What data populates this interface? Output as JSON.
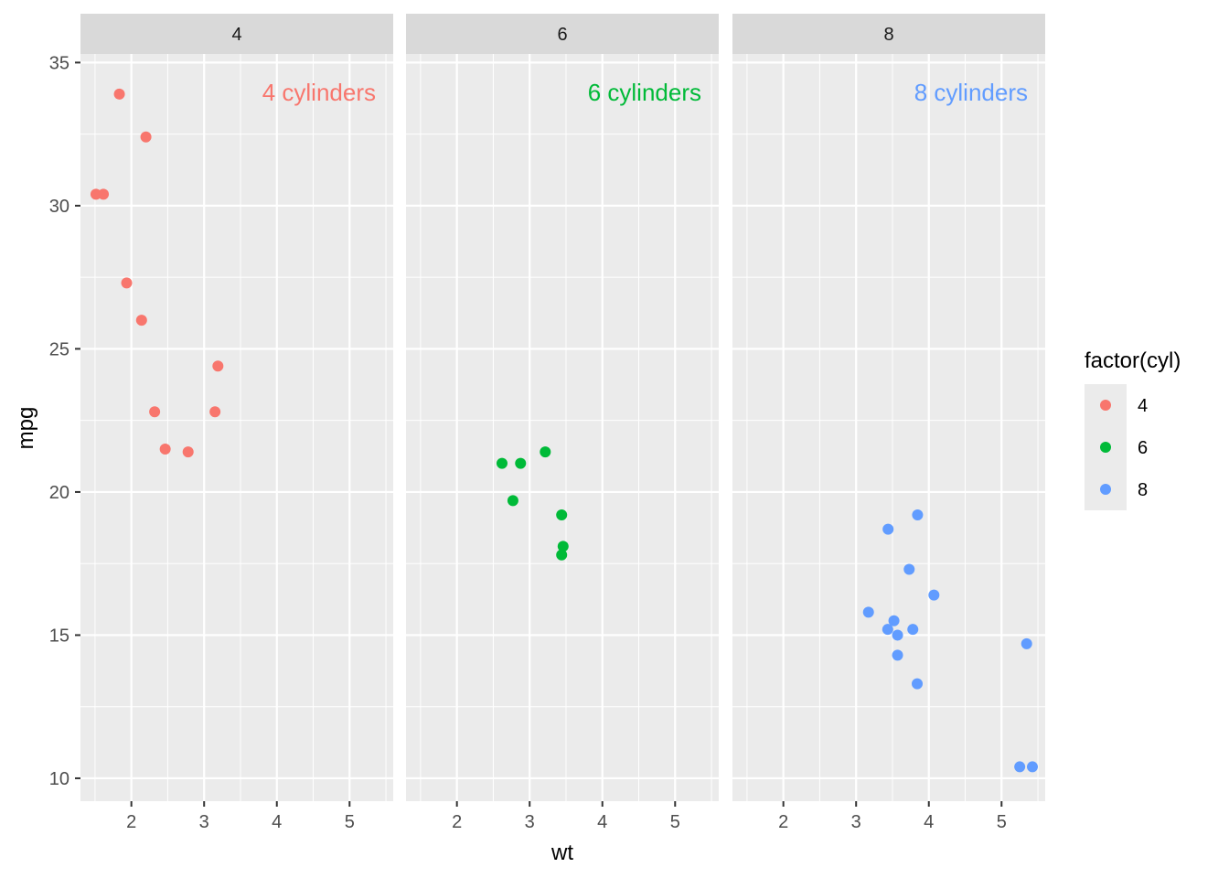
{
  "chart_data": {
    "type": "scatter",
    "facet_by": "cyl",
    "xlabel": "wt",
    "ylabel": "mpg",
    "xlim": [
      1.3,
      5.6
    ],
    "ylim": [
      9.2,
      35.3
    ],
    "x_ticks": [
      2,
      3,
      4,
      5
    ],
    "x_tick_labels": [
      "2",
      "3",
      "4",
      "5"
    ],
    "y_ticks": [
      10,
      15,
      20,
      25,
      30,
      35
    ],
    "y_tick_labels": [
      "10",
      "15",
      "20",
      "25",
      "30",
      "35"
    ],
    "grid": true,
    "legend": {
      "title": "factor(cyl)",
      "position": "right",
      "entries": [
        "4",
        "6",
        "8"
      ]
    },
    "panels": [
      {
        "strip": "4",
        "annotation": "4 cylinders",
        "color": "#F8766D",
        "points": [
          {
            "x": 1.513,
            "y": 30.4
          },
          {
            "x": 1.615,
            "y": 30.4
          },
          {
            "x": 1.835,
            "y": 33.9
          },
          {
            "x": 1.935,
            "y": 27.3
          },
          {
            "x": 2.14,
            "y": 26.0
          },
          {
            "x": 2.2,
            "y": 32.4
          },
          {
            "x": 2.32,
            "y": 22.8
          },
          {
            "x": 2.465,
            "y": 21.5
          },
          {
            "x": 2.78,
            "y": 21.4
          },
          {
            "x": 3.15,
            "y": 22.8
          },
          {
            "x": 3.19,
            "y": 24.4
          }
        ]
      },
      {
        "strip": "6",
        "annotation": "6 cylinders",
        "color": "#00BA38",
        "points": [
          {
            "x": 2.62,
            "y": 21.0
          },
          {
            "x": 2.875,
            "y": 21.0
          },
          {
            "x": 2.77,
            "y": 19.7
          },
          {
            "x": 3.215,
            "y": 21.4
          },
          {
            "x": 3.44,
            "y": 19.2
          },
          {
            "x": 3.44,
            "y": 17.8
          },
          {
            "x": 3.46,
            "y": 18.1
          }
        ]
      },
      {
        "strip": "8",
        "annotation": "8 cylinders",
        "color": "#619CFF",
        "points": [
          {
            "x": 3.17,
            "y": 15.8
          },
          {
            "x": 3.435,
            "y": 15.2
          },
          {
            "x": 3.44,
            "y": 18.7
          },
          {
            "x": 3.52,
            "y": 15.5
          },
          {
            "x": 3.57,
            "y": 14.3
          },
          {
            "x": 3.57,
            "y": 15.0
          },
          {
            "x": 3.73,
            "y": 17.3
          },
          {
            "x": 3.78,
            "y": 15.2
          },
          {
            "x": 3.84,
            "y": 13.3
          },
          {
            "x": 3.845,
            "y": 19.2
          },
          {
            "x": 4.07,
            "y": 16.4
          },
          {
            "x": 5.25,
            "y": 10.4
          },
          {
            "x": 5.345,
            "y": 14.7
          },
          {
            "x": 5.424,
            "y": 10.4
          }
        ]
      }
    ]
  }
}
